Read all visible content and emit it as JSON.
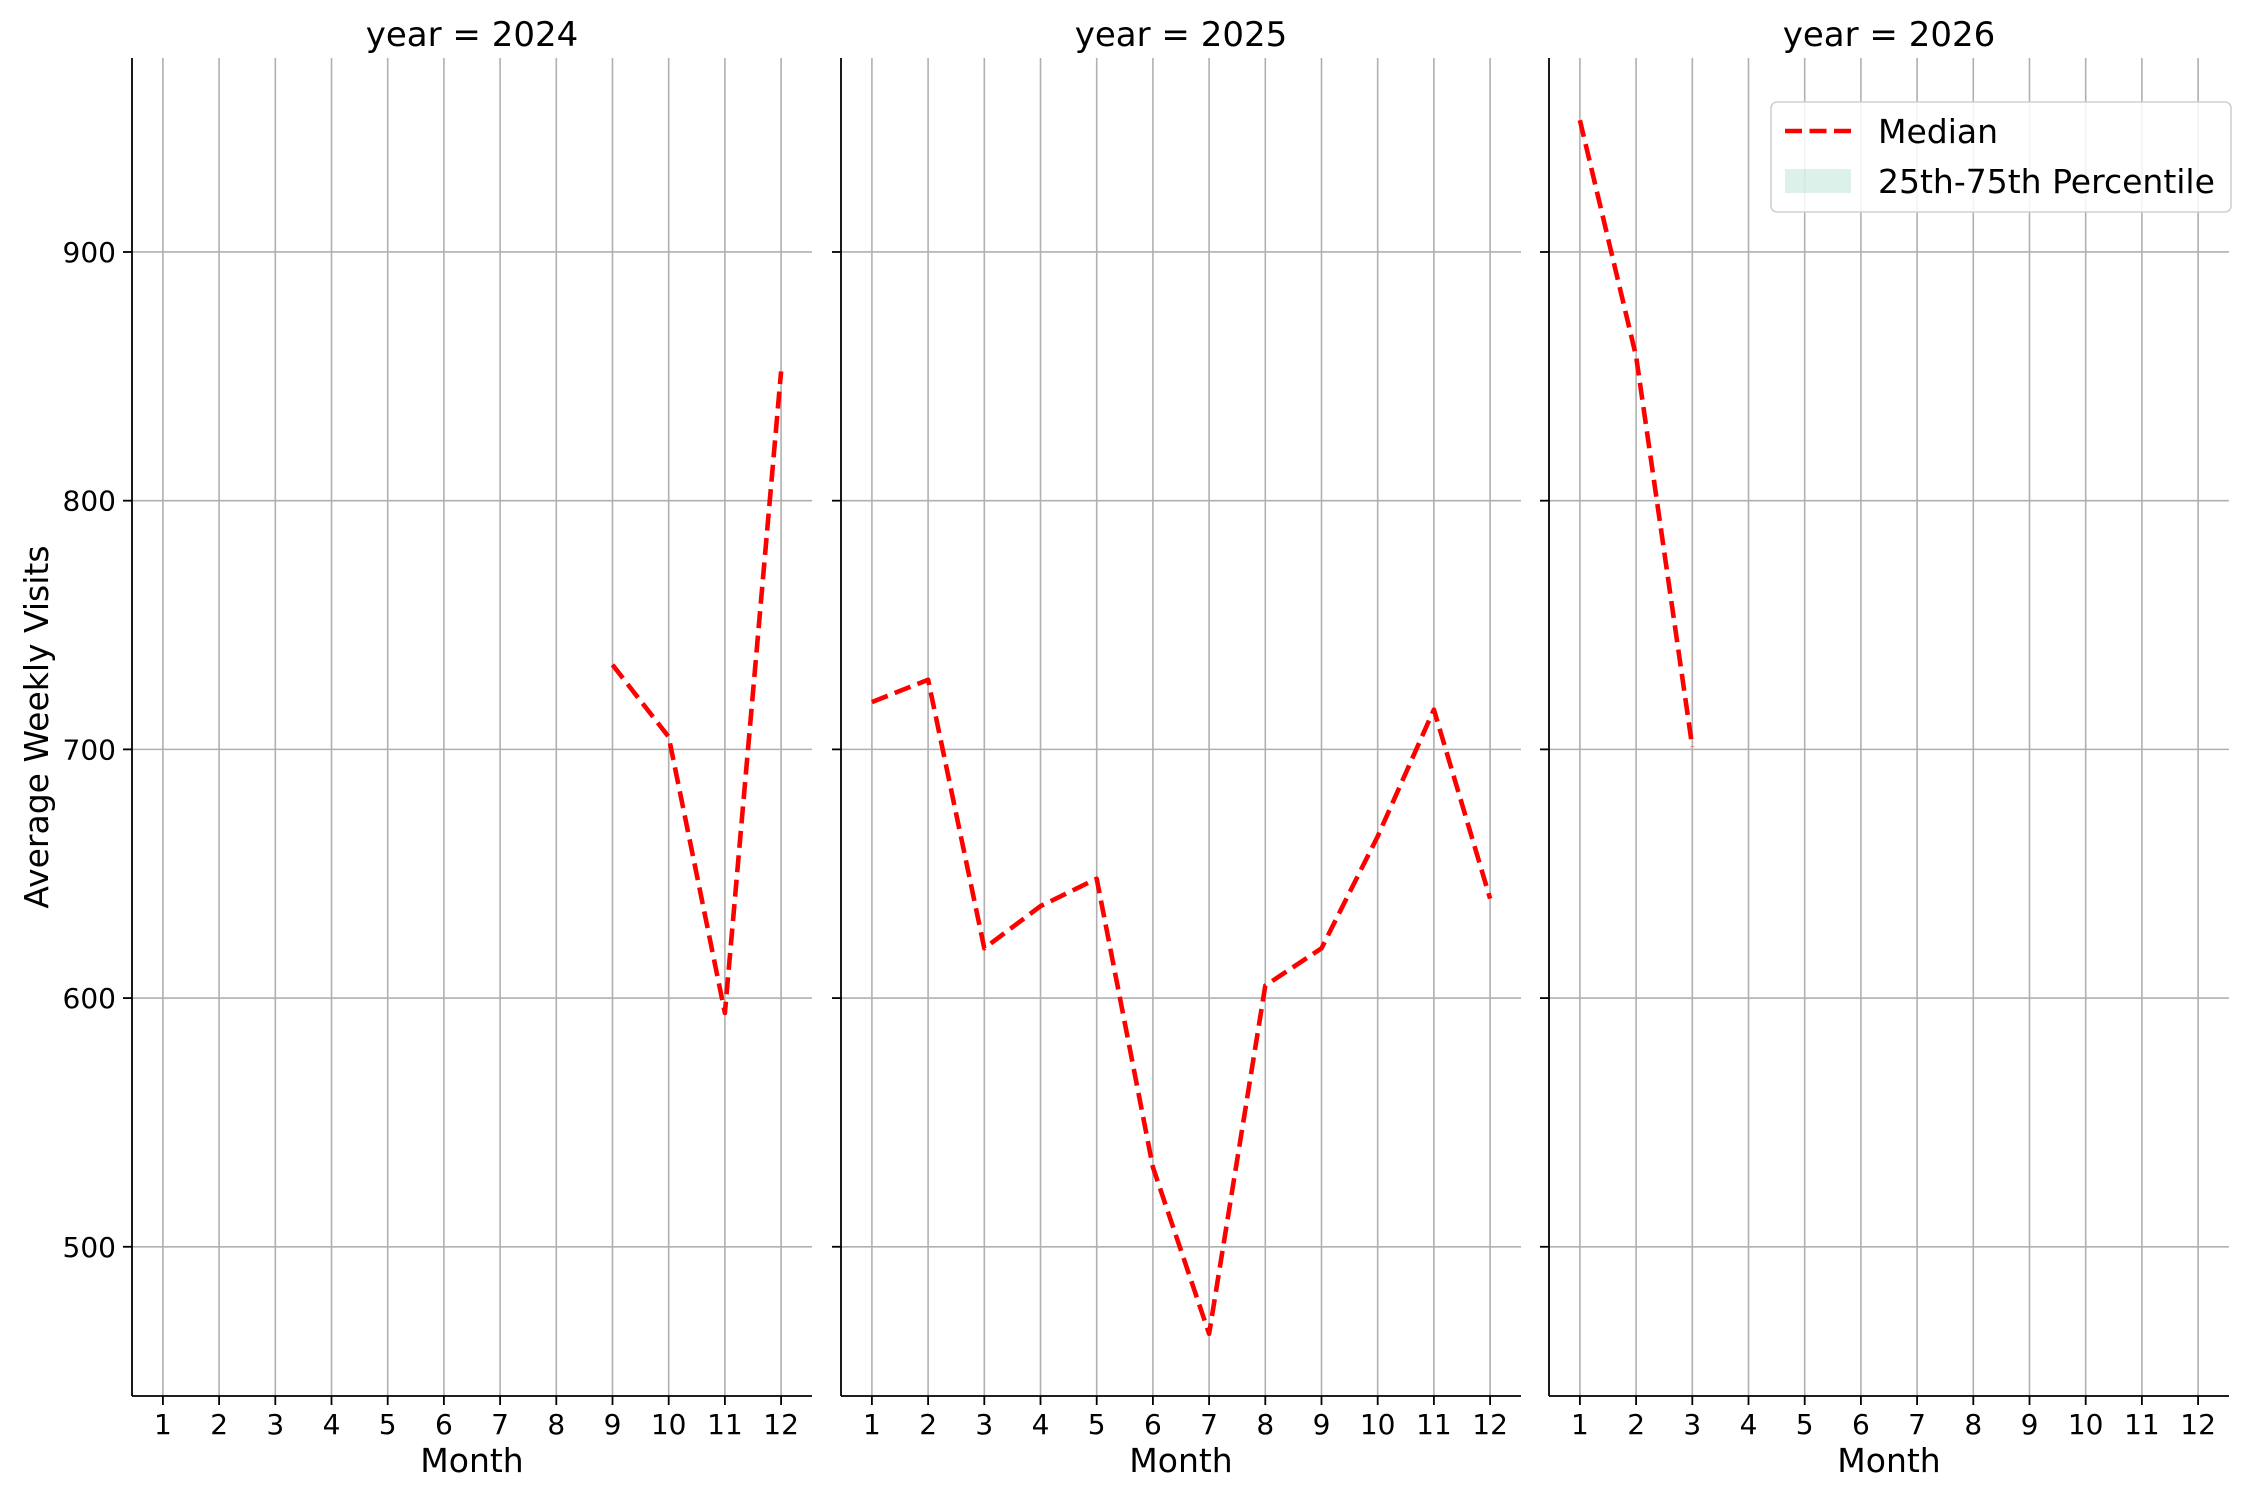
{
  "chart_data": {
    "type": "line",
    "ylabel": "Average Weekly Visits",
    "xlabel": "Month",
    "x_ticks": [
      1,
      2,
      3,
      4,
      5,
      6,
      7,
      8,
      9,
      10,
      11,
      12
    ],
    "y_ticks": [
      500,
      600,
      700,
      800,
      900
    ],
    "xlim": [
      0.45,
      12.55
    ],
    "ylim": [
      440,
      978
    ],
    "grid": true,
    "sharey": true,
    "legend": {
      "placement": "top-right",
      "panel": 2,
      "entries": [
        {
          "label": "Median",
          "kind": "line"
        },
        {
          "label": "25th-75th Percentile",
          "kind": "band"
        }
      ]
    },
    "colors": {
      "median": "#ff0000",
      "band": "#8ed1bd",
      "grid": "#b0b0b0",
      "axis": "#000000"
    },
    "panels": [
      {
        "title": "year = 2024",
        "median": {
          "x": [
            9,
            10,
            11,
            12
          ],
          "y": [
            734,
            705,
            594,
            852
          ]
        }
      },
      {
        "title": "year = 2025",
        "median": {
          "x": [
            1,
            2,
            3,
            4,
            5,
            6,
            7,
            8,
            9,
            10,
            11,
            12
          ],
          "y": [
            719,
            728,
            620,
            637,
            648,
            532,
            465,
            605,
            620,
            665,
            716,
            640
          ]
        }
      },
      {
        "title": "year = 2026",
        "median": {
          "x": [
            1,
            2,
            3
          ],
          "y": [
            953,
            858,
            701
          ]
        }
      }
    ]
  }
}
